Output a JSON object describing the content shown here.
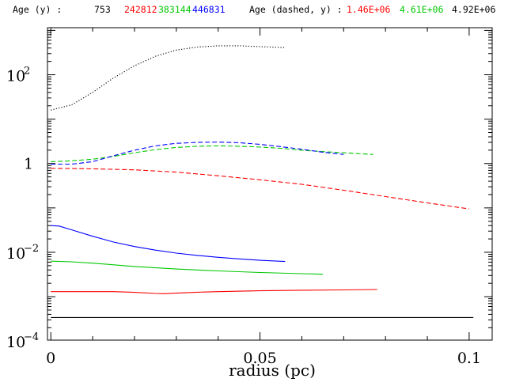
{
  "header": {
    "age_label": "Age (y) :",
    "ages": [
      {
        "text": "753",
        "color": "#000000"
      },
      {
        "text": "242812",
        "color": "#ff0000"
      },
      {
        "text": "383144",
        "color": "#00c800"
      },
      {
        "text": "446831",
        "color": "#0000ff"
      }
    ],
    "dashed_label": "Age (dashed, y) :",
    "dashed_ages": [
      {
        "text": "1.46E+06",
        "color": "#ff0000"
      },
      {
        "text": "4.61E+06",
        "color": "#00c800"
      },
      {
        "text": "4.92E+06",
        "color": "#000000"
      }
    ]
  },
  "chart_data": {
    "type": "line",
    "xlabel": "radius (pc)",
    "ylabel": "",
    "y_scale": "log",
    "xlim": [
      -0.0008,
      0.1055
    ],
    "ylim": [
      0.000105,
      1150
    ],
    "x_ticks": [
      {
        "value": 0,
        "label": "0"
      },
      {
        "value": 0.05,
        "label": "0.05"
      },
      {
        "value": 0.1,
        "label": "0.1"
      }
    ],
    "y_ticks": [
      {
        "value": 0.0001,
        "base": "10",
        "exp": "−4"
      },
      {
        "value": 0.01,
        "base": "10",
        "exp": "−2"
      },
      {
        "value": 1,
        "base": "1",
        "exp": ""
      },
      {
        "value": 100,
        "base": "10",
        "exp": "2"
      }
    ],
    "series": [
      {
        "color": "#000000",
        "style": "solid",
        "x": [
          0,
          0.101
        ],
        "y": [
          0.00034,
          0.00034
        ]
      },
      {
        "color": "#ff0000",
        "style": "solid",
        "x": [
          0,
          0.005,
          0.01,
          0.015,
          0.02,
          0.025,
          0.027,
          0.03,
          0.035,
          0.04,
          0.05,
          0.06,
          0.07,
          0.078
        ],
        "y": [
          0.0013,
          0.0013,
          0.0013,
          0.0013,
          0.00125,
          0.00118,
          0.00117,
          0.0012,
          0.00126,
          0.0013,
          0.00136,
          0.0014,
          0.00142,
          0.00145
        ]
      },
      {
        "color": "#00c800",
        "style": "solid",
        "x": [
          0,
          0.005,
          0.01,
          0.02,
          0.03,
          0.04,
          0.05,
          0.06,
          0.065
        ],
        "y": [
          0.0063,
          0.0061,
          0.0057,
          0.0048,
          0.0042,
          0.0038,
          0.0035,
          0.0033,
          0.0032
        ]
      },
      {
        "color": "#0000ff",
        "style": "solid",
        "x": [
          0,
          0.002,
          0.005,
          0.01,
          0.015,
          0.02,
          0.025,
          0.03,
          0.035,
          0.04,
          0.045,
          0.05,
          0.056
        ],
        "y": [
          0.04,
          0.039,
          0.032,
          0.023,
          0.017,
          0.0135,
          0.0112,
          0.0096,
          0.0085,
          0.0077,
          0.0071,
          0.0066,
          0.0062
        ]
      },
      {
        "color": "#000000",
        "style": "dotted",
        "x": [
          0,
          0.005,
          0.01,
          0.015,
          0.02,
          0.025,
          0.03,
          0.035,
          0.04,
          0.045,
          0.05,
          0.056
        ],
        "y": [
          16,
          21,
          40,
          85,
          160,
          260,
          360,
          420,
          450,
          450,
          430,
          410
        ]
      },
      {
        "color": "#ff0000",
        "style": "dashed",
        "x": [
          0,
          0.01,
          0.02,
          0.03,
          0.04,
          0.05,
          0.06,
          0.07,
          0.08,
          0.09,
          0.1
        ],
        "y": [
          0.78,
          0.76,
          0.72,
          0.64,
          0.53,
          0.43,
          0.34,
          0.25,
          0.18,
          0.13,
          0.095
        ]
      },
      {
        "color": "#00c800",
        "style": "dashed",
        "x": [
          0,
          0.005,
          0.01,
          0.015,
          0.02,
          0.025,
          0.03,
          0.035,
          0.04,
          0.045,
          0.05,
          0.055,
          0.06,
          0.065,
          0.07,
          0.077
        ],
        "y": [
          1.1,
          1.15,
          1.25,
          1.45,
          1.75,
          2.05,
          2.3,
          2.45,
          2.5,
          2.45,
          2.35,
          2.2,
          2.0,
          1.85,
          1.75,
          1.6
        ]
      },
      {
        "color": "#0000ff",
        "style": "dashed",
        "x": [
          0,
          0.005,
          0.01,
          0.015,
          0.02,
          0.025,
          0.03,
          0.035,
          0.04,
          0.045,
          0.05,
          0.055,
          0.06,
          0.065,
          0.07
        ],
        "y": [
          0.97,
          0.97,
          1.1,
          1.5,
          2.0,
          2.5,
          2.85,
          3.0,
          3.05,
          2.95,
          2.7,
          2.4,
          2.1,
          1.8,
          1.6
        ]
      }
    ]
  }
}
